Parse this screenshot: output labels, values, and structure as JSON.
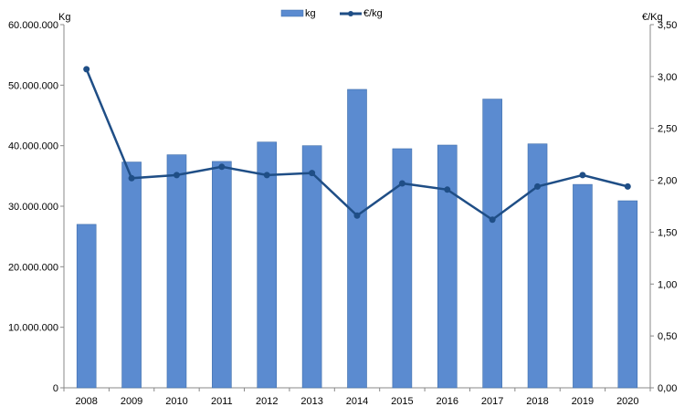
{
  "chart_data": {
    "type": "bar+line",
    "categories": [
      "2008",
      "2009",
      "2010",
      "2011",
      "2012",
      "2013",
      "2014",
      "2015",
      "2016",
      "2017",
      "2018",
      "2019",
      "2020"
    ],
    "series": [
      {
        "name": "kg",
        "type": "bar",
        "axis": "left",
        "color": "#5b8bd0",
        "values": [
          27000000,
          37300000,
          38500000,
          37400000,
          40600000,
          40000000,
          49300000,
          39500000,
          40100000,
          47700000,
          40300000,
          33600000,
          30900000
        ]
      },
      {
        "name": "€/kg",
        "type": "line",
        "axis": "right",
        "color": "#1f4e86",
        "values": [
          3.07,
          2.02,
          2.05,
          2.13,
          2.05,
          2.07,
          1.66,
          1.97,
          1.91,
          1.62,
          1.94,
          2.05,
          1.94
        ]
      }
    ],
    "ylabel": "Kg",
    "y2label": "€/Kg",
    "ylim": [
      0,
      60000000
    ],
    "y2lim": [
      0,
      3.5
    ],
    "yticks": [
      "0",
      "10.000.000",
      "20.000.000",
      "30.000.000",
      "40.000.000",
      "50.000.000",
      "60.000.000"
    ],
    "y2ticks": [
      "0,00",
      "0,50",
      "1,00",
      "1,50",
      "2,00",
      "2,50",
      "3,00",
      "3,50"
    ],
    "legend_position": "top-center",
    "grid": false
  }
}
